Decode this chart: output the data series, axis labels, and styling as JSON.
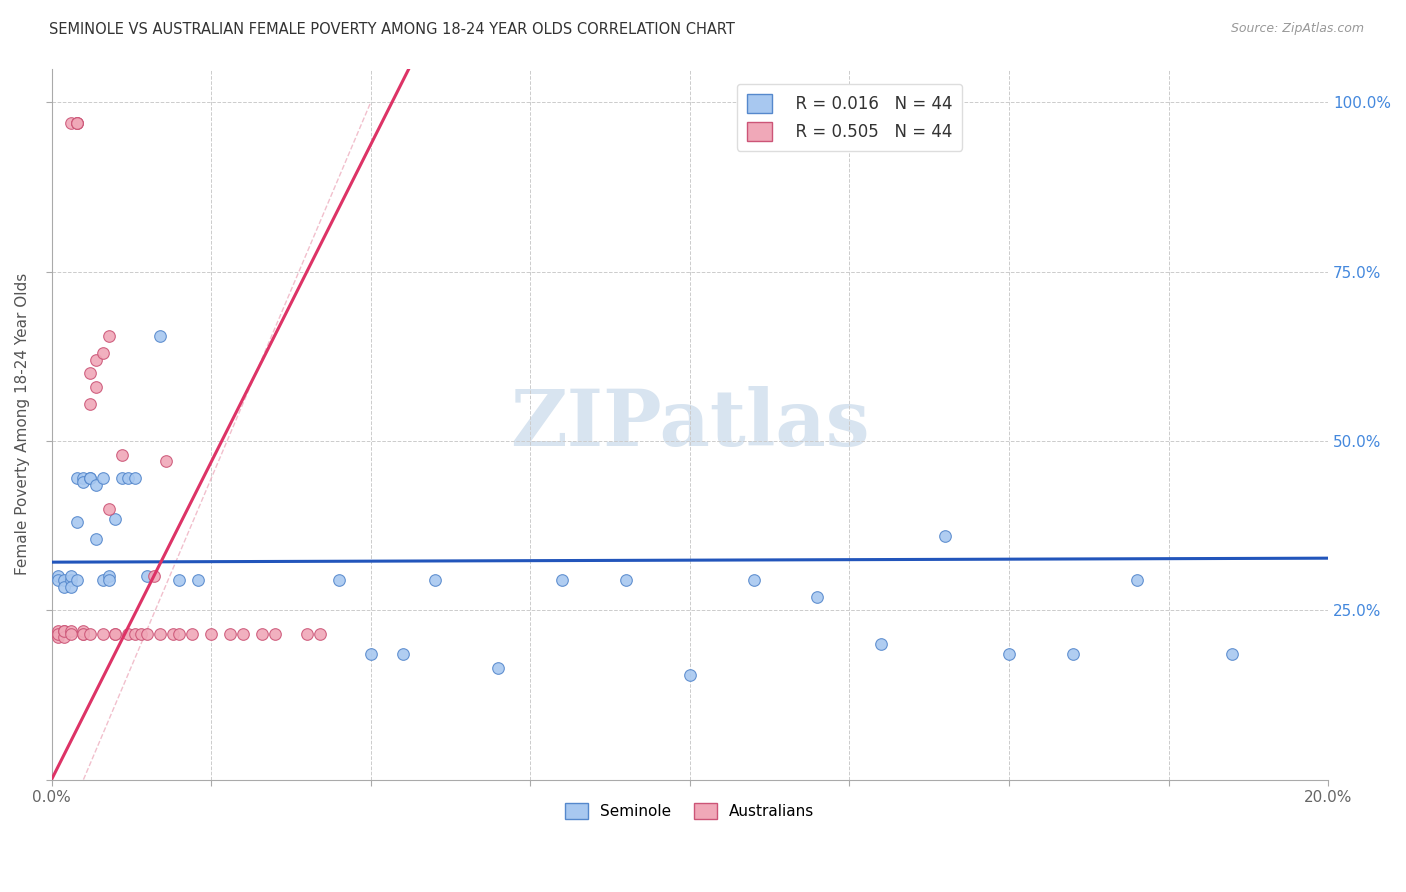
{
  "title": "SEMINOLE VS AUSTRALIAN FEMALE POVERTY AMONG 18-24 YEAR OLDS CORRELATION CHART",
  "source": "Source: ZipAtlas.com",
  "ylabel": "Female Poverty Among 18-24 Year Olds",
  "xlim": [
    0.0,
    0.2
  ],
  "ylim": [
    0.0,
    1.05
  ],
  "xticks": [
    0.0,
    0.025,
    0.05,
    0.075,
    0.1,
    0.125,
    0.15,
    0.175,
    0.2
  ],
  "xticklabels": [
    "0.0%",
    "",
    "",
    "",
    "",
    "",
    "",
    "",
    "20.0%"
  ],
  "yticks_right": [
    0.25,
    0.5,
    0.75,
    1.0
  ],
  "yticklabels_right": [
    "25.0%",
    "50.0%",
    "75.0%",
    "100.0%"
  ],
  "seminole_color": "#A8C8F0",
  "seminole_edge": "#5588CC",
  "australian_color": "#F0A8B8",
  "australian_edge": "#CC5577",
  "trend_seminole_color": "#2255BB",
  "trend_australian_color": "#DD3366",
  "watermark_color": "#E0E8F4",
  "legend_R_seminole": "R = 0.016",
  "legend_N_seminole": "N = 44",
  "legend_R_australian": "R = 0.505",
  "legend_N_australian": "N = 44",
  "seminole_x": [
    0.001,
    0.001,
    0.002,
    0.002,
    0.003,
    0.003,
    0.003,
    0.004,
    0.004,
    0.004,
    0.005,
    0.005,
    0.006,
    0.006,
    0.007,
    0.007,
    0.008,
    0.008,
    0.009,
    0.009,
    0.01,
    0.011,
    0.012,
    0.013,
    0.015,
    0.017,
    0.02,
    0.023,
    0.045,
    0.05,
    0.055,
    0.06,
    0.07,
    0.08,
    0.09,
    0.1,
    0.11,
    0.12,
    0.13,
    0.14,
    0.15,
    0.16,
    0.17,
    0.185
  ],
  "seminole_y": [
    0.3,
    0.295,
    0.295,
    0.285,
    0.295,
    0.3,
    0.285,
    0.295,
    0.445,
    0.38,
    0.445,
    0.44,
    0.445,
    0.445,
    0.435,
    0.355,
    0.445,
    0.295,
    0.3,
    0.295,
    0.385,
    0.445,
    0.445,
    0.445,
    0.3,
    0.655,
    0.295,
    0.295,
    0.295,
    0.185,
    0.185,
    0.295,
    0.165,
    0.295,
    0.295,
    0.155,
    0.295,
    0.27,
    0.2,
    0.36,
    0.185,
    0.185,
    0.295,
    0.185
  ],
  "australian_x": [
    0.001,
    0.001,
    0.001,
    0.002,
    0.002,
    0.002,
    0.003,
    0.003,
    0.003,
    0.004,
    0.004,
    0.004,
    0.005,
    0.005,
    0.005,
    0.006,
    0.006,
    0.006,
    0.007,
    0.007,
    0.008,
    0.008,
    0.009,
    0.009,
    0.01,
    0.01,
    0.011,
    0.012,
    0.013,
    0.014,
    0.015,
    0.016,
    0.017,
    0.018,
    0.019,
    0.02,
    0.022,
    0.025,
    0.028,
    0.03,
    0.033,
    0.035,
    0.04,
    0.042
  ],
  "australian_y": [
    0.22,
    0.21,
    0.215,
    0.22,
    0.21,
    0.22,
    0.22,
    0.215,
    0.97,
    0.97,
    0.97,
    0.97,
    0.215,
    0.22,
    0.215,
    0.6,
    0.555,
    0.215,
    0.62,
    0.58,
    0.63,
    0.215,
    0.655,
    0.4,
    0.215,
    0.215,
    0.48,
    0.215,
    0.215,
    0.215,
    0.215,
    0.3,
    0.215,
    0.47,
    0.215,
    0.215,
    0.215,
    0.215,
    0.215,
    0.215,
    0.215,
    0.215,
    0.215,
    0.215
  ],
  "ref_line_x": [
    0.005,
    0.05
  ],
  "ref_line_y": [
    0.0,
    1.0
  ]
}
